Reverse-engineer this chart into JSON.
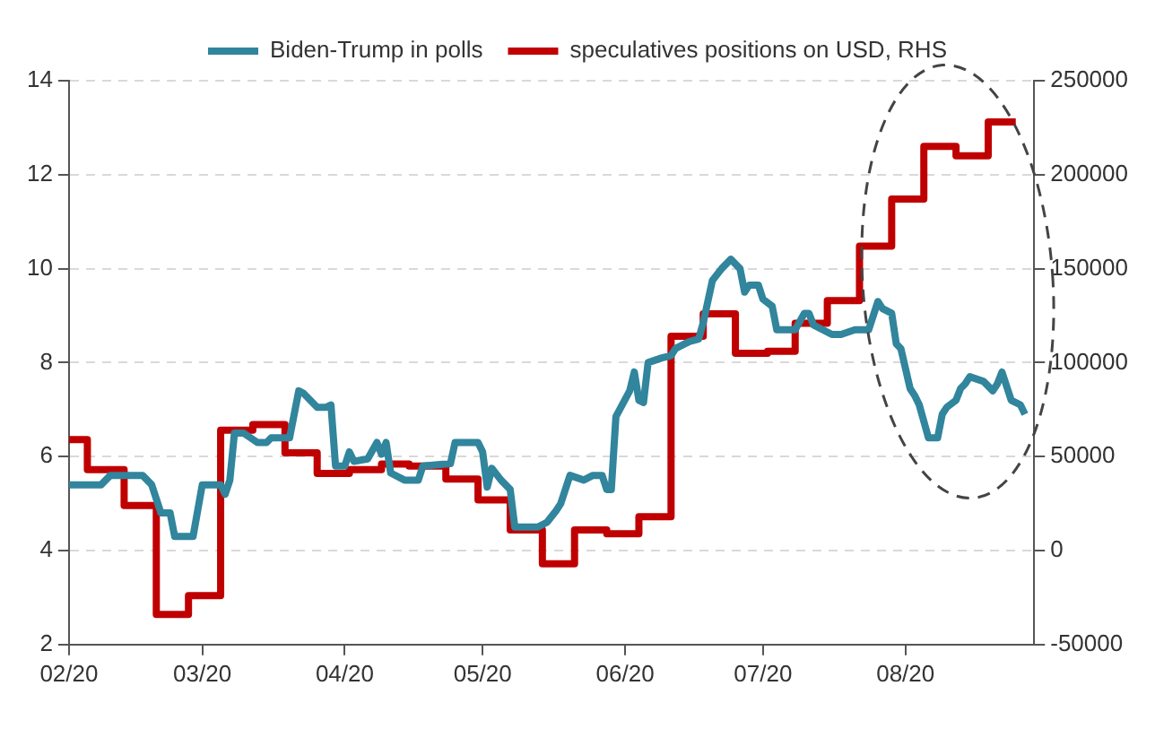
{
  "chart_data": {
    "type": "line",
    "legend": "top",
    "grid": "y",
    "xlim": [
      "2020-02-01",
      "2020-08-29"
    ],
    "xticks": [
      {
        "value": "2020-02",
        "label": "02/20"
      },
      {
        "value": "2020-03",
        "label": "03/20"
      },
      {
        "value": "2020-04",
        "label": "04/20"
      },
      {
        "value": "2020-05",
        "label": "05/20"
      },
      {
        "value": "2020-06",
        "label": "06/20"
      },
      {
        "value": "2020-07",
        "label": "07/20"
      },
      {
        "value": "2020-08",
        "label": "08/20"
      }
    ],
    "ylim": [
      2,
      14
    ],
    "yticks": [
      2,
      4,
      6,
      8,
      10,
      12,
      14
    ],
    "y2lim": [
      -50000,
      250000
    ],
    "y2ticks": [
      -50000,
      0,
      50000,
      100000,
      150000,
      200000,
      250000
    ],
    "series": [
      {
        "name": "Biden-Trump in polls",
        "color": "#31859c",
        "x": [
          "2020-02-01",
          "2020-02-08",
          "2020-02-10",
          "2020-02-17",
          "2020-02-19",
          "2020-02-21",
          "2020-02-23",
          "2020-02-24",
          "2020-02-28",
          "2020-03-01",
          "2020-03-05",
          "2020-03-06",
          "2020-03-07",
          "2020-03-08",
          "2020-03-10",
          "2020-03-13",
          "2020-03-15",
          "2020-03-16",
          "2020-03-20",
          "2020-03-22",
          "2020-03-23",
          "2020-03-26",
          "2020-03-28",
          "2020-03-29",
          "2020-03-30",
          "2020-04-01",
          "2020-04-02",
          "2020-04-03",
          "2020-04-06",
          "2020-04-08",
          "2020-04-09",
          "2020-04-10",
          "2020-04-11",
          "2020-04-14",
          "2020-04-17",
          "2020-04-18",
          "2020-04-24",
          "2020-04-25",
          "2020-04-30",
          "2020-05-01",
          "2020-05-02",
          "2020-05-03",
          "2020-05-05",
          "2020-05-07",
          "2020-05-08",
          "2020-05-13",
          "2020-05-15",
          "2020-05-17",
          "2020-05-18",
          "2020-05-20",
          "2020-05-23",
          "2020-05-25",
          "2020-05-27",
          "2020-05-28",
          "2020-05-29",
          "2020-05-30",
          "2020-06-02",
          "2020-06-03",
          "2020-06-04",
          "2020-06-05",
          "2020-06-06",
          "2020-06-09",
          "2020-06-11",
          "2020-06-12",
          "2020-06-15",
          "2020-06-17",
          "2020-06-18",
          "2020-06-20",
          "2020-06-22",
          "2020-06-24",
          "2020-06-26",
          "2020-06-27",
          "2020-06-28",
          "2020-06-30",
          "2020-07-01",
          "2020-07-03",
          "2020-07-04",
          "2020-07-08",
          "2020-07-10",
          "2020-07-11",
          "2020-07-12",
          "2020-07-16",
          "2020-07-18",
          "2020-07-21",
          "2020-07-24",
          "2020-07-26",
          "2020-07-27",
          "2020-07-29",
          "2020-07-30",
          "2020-07-31",
          "2020-08-02",
          "2020-08-03",
          "2020-08-04",
          "2020-08-06",
          "2020-08-08",
          "2020-08-09",
          "2020-08-10",
          "2020-08-12",
          "2020-08-13",
          "2020-08-14",
          "2020-08-15",
          "2020-08-18",
          "2020-08-20",
          "2020-08-21",
          "2020-08-22",
          "2020-08-24",
          "2020-08-26",
          "2020-08-27"
        ],
        "values": [
          5.4,
          5.4,
          5.6,
          5.6,
          5.4,
          4.8,
          4.8,
          4.3,
          4.3,
          5.4,
          5.4,
          5.2,
          5.5,
          6.5,
          6.5,
          6.3,
          6.3,
          6.4,
          6.4,
          7.4,
          7.35,
          7.05,
          7.05,
          7.1,
          5.8,
          5.8,
          6.1,
          5.9,
          5.95,
          6.3,
          6.05,
          6.3,
          5.65,
          5.5,
          5.5,
          5.8,
          5.85,
          6.3,
          6.3,
          6.1,
          5.35,
          5.75,
          5.5,
          5.3,
          4.5,
          4.5,
          4.6,
          4.85,
          5.0,
          5.6,
          5.5,
          5.6,
          5.6,
          5.3,
          5.3,
          6.85,
          7.4,
          7.8,
          7.2,
          7.15,
          8.0,
          8.1,
          8.15,
          8.3,
          8.45,
          8.5,
          8.85,
          9.75,
          10.0,
          10.2,
          10.0,
          9.5,
          9.65,
          9.65,
          9.35,
          9.2,
          8.7,
          8.7,
          9.05,
          9.05,
          8.8,
          8.6,
          8.6,
          8.7,
          8.7,
          9.3,
          9.15,
          9.05,
          8.4,
          8.3,
          7.45,
          7.3,
          7.1,
          6.4,
          6.4,
          6.9,
          7.05,
          7.2,
          7.45,
          7.55,
          7.7,
          7.6,
          7.4,
          7.55,
          7.8,
          7.2,
          7.1,
          6.9
        ]
      },
      {
        "name": "speculatives positions on USD, RHS",
        "type": "step",
        "axis": "y2",
        "color": "#c00000",
        "x": [
          "2020-02-01",
          "2020-02-05",
          "2020-02-13",
          "2020-02-20",
          "2020-02-27",
          "2020-03-05",
          "2020-03-12",
          "2020-03-19",
          "2020-03-26",
          "2020-04-02",
          "2020-04-09",
          "2020-04-15",
          "2020-04-23",
          "2020-04-30",
          "2020-05-07",
          "2020-05-14",
          "2020-05-21",
          "2020-05-28",
          "2020-06-04",
          "2020-06-11",
          "2020-06-18",
          "2020-06-25",
          "2020-07-02",
          "2020-07-08",
          "2020-07-15",
          "2020-07-22",
          "2020-07-29",
          "2020-08-05",
          "2020-08-12",
          "2020-08-19",
          "2020-08-25"
        ],
        "values": [
          59000,
          43000,
          24000,
          -34000,
          -24000,
          64000,
          67000,
          52000,
          41000,
          43000,
          46000,
          45000,
          38000,
          27000,
          11000,
          -7000,
          11000,
          9000,
          18000,
          114000,
          126000,
          105000,
          106000,
          121000,
          133000,
          162000,
          187000,
          215000,
          210000,
          228000,
          228000
        ]
      }
    ]
  }
}
